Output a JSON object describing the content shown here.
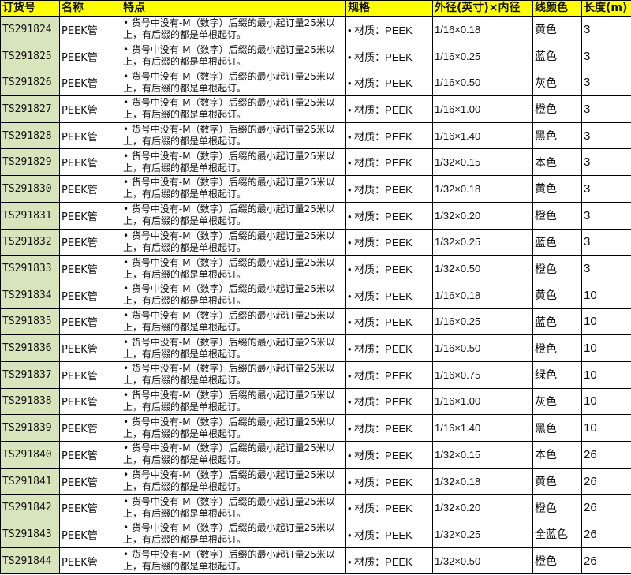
{
  "headers": [
    "订货号",
    "名称",
    "特点",
    "规格",
    "外径(英寸)×内径",
    "线颜色",
    "长度(m)"
  ],
  "rows": [
    {
      "id": "TS291824",
      "name": "PEEK管",
      "feature": "• 货号中没有-M（数字）后缀的最小起订量25米以上，有后缀的都是单根起订。",
      "spec": "• 材质：PEEK",
      "dim": "1/16×0.18",
      "color": "黄色",
      "length": "3"
    },
    {
      "id": "TS291825",
      "name": "PEEK管",
      "feature": "• 货号中没有-M（数字）后缀的最小起订量25米以上，有后缀的都是单根起订。",
      "spec": "• 材质：PEEK",
      "dim": "1/16×0.25",
      "color": "蓝色",
      "length": "3"
    },
    {
      "id": "TS291826",
      "name": "PEEK管",
      "feature": "• 货号中没有-M（数字）后缀的最小起订量25米以上，有后缀的都是单根起订。",
      "spec": "• 材质：PEEK",
      "dim": "1/16×0.50",
      "color": "灰色",
      "length": "3"
    },
    {
      "id": "TS291827",
      "name": "PEEK管",
      "feature": "• 货号中没有-M（数字）后缀的最小起订量25米以上，有后缀的都是单根起订。",
      "spec": "• 材质：PEEK",
      "dim": "1/16×1.00",
      "color": "橙色",
      "length": "3"
    },
    {
      "id": "TS291828",
      "name": "PEEK管",
      "feature": "• 货号中没有-M（数字）后缀的最小起订量25米以上，有后缀的都是单根起订。",
      "spec": "• 材质：PEEK",
      "dim": "1/16×1.40",
      "color": "黑色",
      "length": "3"
    },
    {
      "id": "TS291829",
      "name": "PEEK管",
      "feature": "• 货号中没有-M（数字）后缀的最小起订量25米以上，有后缀的都是单根起订。",
      "spec": "• 材质：PEEK",
      "dim": "1/32×0.15",
      "color": "本色",
      "length": "3"
    },
    {
      "id": "TS291830",
      "name": "PEEK管",
      "feature": "• 货号中没有-M（数字）后缀的最小起订量25米以上，有后缀的都是单根起订。",
      "spec": "• 材质：PEEK",
      "dim": "1/32×0.18",
      "color": "黄色",
      "length": "3"
    },
    {
      "id": "TS291831",
      "name": "PEEK管",
      "feature": "• 货号中没有-M（数字）后缀的最小起订量25米以上，有后缀的都是单根起订。",
      "spec": "• 材质：PEEK",
      "dim": "1/32×0.20",
      "color": "橙色",
      "length": "3"
    },
    {
      "id": "TS291832",
      "name": "PEEK管",
      "feature": "• 货号中没有-M（数字）后缀的最小起订量25米以上，有后缀的都是单根起订。",
      "spec": "• 材质：PEEK",
      "dim": "1/32×0.25",
      "color": "蓝色",
      "length": "3"
    },
    {
      "id": "TS291833",
      "name": "PEEK管",
      "feature": "• 货号中没有-M（数字）后缀的最小起订量25米以上，有后缀的都是单根起订。",
      "spec": "• 材质：PEEK",
      "dim": "1/32×0.50",
      "color": "橙色",
      "length": "3"
    },
    {
      "id": "TS291834",
      "name": "PEEK管",
      "feature": "• 货号中没有-M（数字）后缀的最小起订量25米以上，有后缀的都是单根起订。",
      "spec": "• 材质：PEEK",
      "dim": "1/16×0.18",
      "color": "黄色",
      "length": "10"
    },
    {
      "id": "TS291835",
      "name": "PEEK管",
      "feature": "• 货号中没有-M（数字）后缀的最小起订量25米以上，有后缀的都是单根起订。",
      "spec": "• 材质：PEEK",
      "dim": "1/16×0.25",
      "color": "蓝色",
      "length": "10"
    },
    {
      "id": "TS291836",
      "name": "PEEK管",
      "feature": "• 货号中没有-M（数字）后缀的最小起订量25米以上，有后缀的都是单根起订。",
      "spec": "• 材质：PEEK",
      "dim": "1/16×0.50",
      "color": "橙色",
      "length": "10"
    },
    {
      "id": "TS291837",
      "name": "PEEK管",
      "feature": "• 货号中没有-M（数字）后缀的最小起订量25米以上，有后缀的都是单根起订。",
      "spec": "• 材质：PEEK",
      "dim": "1/16×0.75",
      "color": "绿色",
      "length": "10"
    },
    {
      "id": "TS291838",
      "name": "PEEK管",
      "feature": "• 货号中没有-M（数字）后缀的最小起订量25米以上，有后缀的都是单根起订。",
      "spec": "• 材质：PEEK",
      "dim": "1/16×1.00",
      "color": "灰色",
      "length": "10"
    },
    {
      "id": "TS291839",
      "name": "PEEK管",
      "feature": "• 货号中没有-M（数字）后缀的最小起订量25米以上，有后缀的都是单根起订。",
      "spec": "• 材质：PEEK",
      "dim": "1/16×1.40",
      "color": "黑色",
      "length": "10"
    },
    {
      "id": "TS291840",
      "name": "PEEK管",
      "feature": "• 货号中没有-M（数字）后缀的最小起订量25米以上，有后缀的都是单根起订。",
      "spec": "• 材质：PEEK",
      "dim": "1/32×0.15",
      "color": "本色",
      "length": "26"
    },
    {
      "id": "TS291841",
      "name": "PEEK管",
      "feature": "• 货号中没有-M（数字）后缀的最小起订量25米以上，有后缀的都是单根起订。",
      "spec": "• 材质：PEEK",
      "dim": "1/32×0.18",
      "color": "黄色",
      "length": "26"
    },
    {
      "id": "TS291842",
      "name": "PEEK管",
      "feature": "• 货号中没有-M（数字）后缀的最小起订量25米以上，有后缀的都是单根起订。",
      "spec": "• 材质：PEEK",
      "dim": "1/32×0.20",
      "color": "橙色",
      "length": "26"
    },
    {
      "id": "TS291843",
      "name": "PEEK管",
      "feature": "• 货号中没有-M（数字）后缀的最小起订量25米以上，有后缀的都是单根起订。",
      "spec": "• 材质：PEEK",
      "dim": "1/32×0.25",
      "color": "全蓝色",
      "length": "26"
    },
    {
      "id": "TS291844",
      "name": "PEEK管",
      "feature": "• 货号中没有-M（数字）后缀的最小起订量25米以上，有后缀的都是单根起订。",
      "spec": "• 材质：PEEK",
      "dim": "1/32×0.50",
      "color": "橙色",
      "length": "26"
    }
  ]
}
